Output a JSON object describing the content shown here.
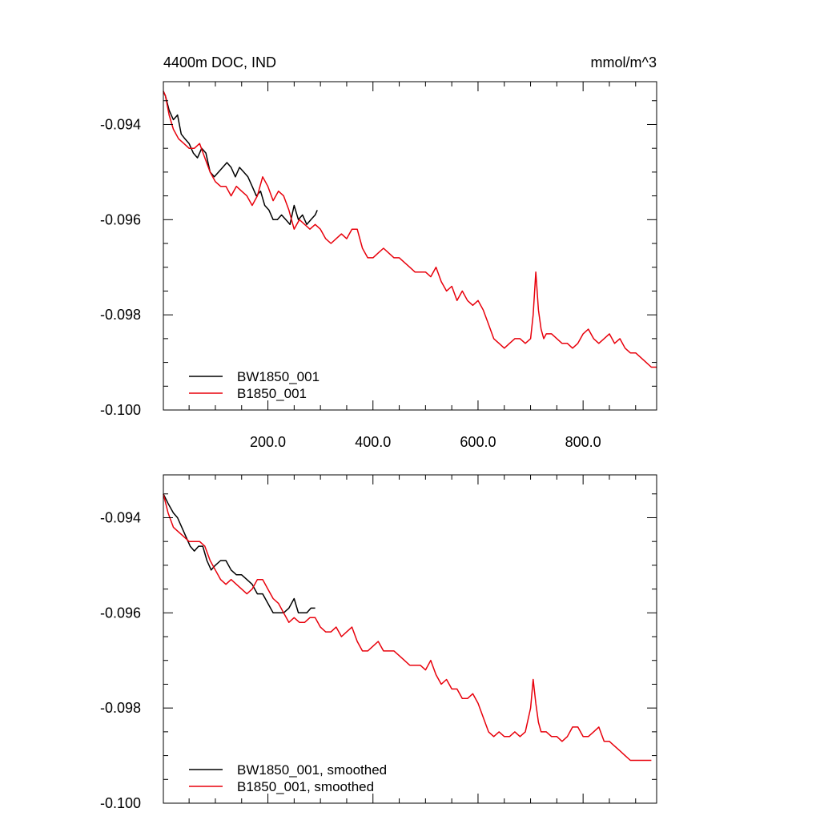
{
  "chart_data": [
    {
      "type": "line",
      "title": "4400m DOC, IND",
      "units": "mmol/m^3",
      "xlim": [
        1,
        940
      ],
      "ylim": [
        -0.1,
        -0.0931
      ],
      "x_ticks": [
        200,
        400,
        600,
        800
      ],
      "x_tick_labels": [
        "200.0",
        "400.0",
        "600.0",
        "800.0"
      ],
      "y_ticks": [
        -0.094,
        -0.096,
        -0.098,
        -0.1
      ],
      "y_tick_labels": [
        "-0.094",
        "-0.096",
        "-0.098",
        "-0.100"
      ],
      "legend_position": "bottom-left",
      "series": [
        {
          "name": "BW1850_001",
          "color": "#000000",
          "x": [
            1,
            5,
            12,
            20,
            28,
            35,
            42,
            50,
            58,
            66,
            74,
            82,
            90,
            98,
            106,
            114,
            122,
            130,
            138,
            146,
            154,
            162,
            170,
            178,
            186,
            194,
            202,
            210,
            218,
            226,
            234,
            242,
            250,
            258,
            266,
            274,
            282,
            290,
            294
          ],
          "y": [
            -0.0933,
            -0.0934,
            -0.0937,
            -0.0939,
            -0.0938,
            -0.0942,
            -0.0943,
            -0.0944,
            -0.0946,
            -0.0947,
            -0.0945,
            -0.0946,
            -0.095,
            -0.0951,
            -0.095,
            -0.0949,
            -0.0948,
            -0.0949,
            -0.0951,
            -0.0949,
            -0.095,
            -0.0951,
            -0.0953,
            -0.0955,
            -0.0954,
            -0.0957,
            -0.0958,
            -0.096,
            -0.096,
            -0.0959,
            -0.096,
            -0.0961,
            -0.0957,
            -0.096,
            -0.0959,
            -0.0961,
            -0.096,
            -0.0959,
            -0.0958
          ]
        },
        {
          "name": "B1850_001",
          "color": "#e8000b",
          "x": [
            1,
            5,
            12,
            20,
            30,
            40,
            50,
            60,
            70,
            80,
            90,
            100,
            110,
            120,
            130,
            140,
            150,
            160,
            170,
            180,
            190,
            200,
            210,
            220,
            230,
            240,
            250,
            260,
            270,
            280,
            290,
            300,
            310,
            320,
            330,
            340,
            350,
            360,
            370,
            380,
            390,
            400,
            410,
            420,
            430,
            440,
            450,
            460,
            470,
            480,
            490,
            500,
            510,
            520,
            530,
            540,
            550,
            560,
            570,
            580,
            590,
            600,
            610,
            620,
            630,
            640,
            650,
            660,
            670,
            680,
            690,
            700,
            705,
            710,
            715,
            720,
            725,
            730,
            740,
            750,
            760,
            770,
            780,
            790,
            800,
            810,
            820,
            830,
            840,
            850,
            860,
            870,
            880,
            890,
            900,
            910,
            920,
            930,
            940
          ],
          "y": [
            -0.0933,
            -0.0934,
            -0.0938,
            -0.0941,
            -0.0943,
            -0.0944,
            -0.0945,
            -0.0945,
            -0.0944,
            -0.0947,
            -0.095,
            -0.0952,
            -0.0953,
            -0.0953,
            -0.0955,
            -0.0953,
            -0.0954,
            -0.0955,
            -0.0957,
            -0.0955,
            -0.0951,
            -0.0953,
            -0.0956,
            -0.0954,
            -0.0955,
            -0.0958,
            -0.0962,
            -0.096,
            -0.0961,
            -0.0962,
            -0.0961,
            -0.0962,
            -0.0964,
            -0.0965,
            -0.0964,
            -0.0963,
            -0.0964,
            -0.0962,
            -0.0962,
            -0.0966,
            -0.0968,
            -0.0968,
            -0.0967,
            -0.0966,
            -0.0967,
            -0.0968,
            -0.0968,
            -0.0969,
            -0.097,
            -0.0971,
            -0.0971,
            -0.0971,
            -0.0972,
            -0.097,
            -0.0973,
            -0.0975,
            -0.0974,
            -0.0977,
            -0.0975,
            -0.0977,
            -0.0978,
            -0.0977,
            -0.0979,
            -0.0982,
            -0.0985,
            -0.0986,
            -0.0987,
            -0.0986,
            -0.0985,
            -0.0985,
            -0.0986,
            -0.0985,
            -0.098,
            -0.0971,
            -0.0979,
            -0.0983,
            -0.0985,
            -0.0984,
            -0.0984,
            -0.0985,
            -0.0986,
            -0.0986,
            -0.0987,
            -0.0986,
            -0.0984,
            -0.0983,
            -0.0985,
            -0.0986,
            -0.0985,
            -0.0984,
            -0.0986,
            -0.0985,
            -0.0987,
            -0.0988,
            -0.0988,
            -0.0989,
            -0.099,
            -0.0991,
            -0.0991
          ]
        }
      ]
    },
    {
      "type": "line",
      "xlim": [
        1,
        940
      ],
      "ylim": [
        -0.1,
        -0.0931
      ],
      "x_ticks": [
        200,
        400,
        600,
        800
      ],
      "y_ticks": [
        -0.094,
        -0.096,
        -0.098,
        -0.1
      ],
      "y_tick_labels": [
        "-0.094",
        "-0.096",
        "-0.098",
        "-0.100"
      ],
      "legend_position": "bottom-left",
      "series": [
        {
          "name": "BW1850_001, smoothed",
          "color": "#000000",
          "x": [
            1,
            10,
            20,
            28,
            36,
            44,
            52,
            60,
            68,
            76,
            84,
            92,
            100,
            110,
            120,
            130,
            140,
            150,
            160,
            170,
            180,
            190,
            200,
            210,
            220,
            230,
            240,
            250,
            258,
            266,
            274,
            282,
            290
          ],
          "y": [
            -0.0935,
            -0.0937,
            -0.0939,
            -0.094,
            -0.0942,
            -0.0944,
            -0.0946,
            -0.0947,
            -0.0946,
            -0.0946,
            -0.0949,
            -0.0951,
            -0.095,
            -0.0949,
            -0.0949,
            -0.0951,
            -0.0952,
            -0.0952,
            -0.0953,
            -0.0954,
            -0.0956,
            -0.0956,
            -0.0958,
            -0.096,
            -0.096,
            -0.096,
            -0.0959,
            -0.0957,
            -0.096,
            -0.096,
            -0.096,
            -0.0959,
            -0.0959
          ]
        },
        {
          "name": "B1850_001, smoothed",
          "color": "#e8000b",
          "x": [
            1,
            10,
            20,
            30,
            40,
            50,
            60,
            70,
            80,
            90,
            100,
            110,
            120,
            130,
            140,
            150,
            160,
            170,
            180,
            190,
            200,
            210,
            220,
            230,
            240,
            250,
            260,
            270,
            280,
            290,
            300,
            310,
            320,
            330,
            340,
            350,
            360,
            370,
            380,
            390,
            400,
            410,
            420,
            430,
            440,
            450,
            460,
            470,
            480,
            490,
            500,
            510,
            520,
            530,
            540,
            550,
            560,
            570,
            580,
            590,
            600,
            610,
            620,
            630,
            640,
            650,
            660,
            670,
            680,
            690,
            700,
            705,
            710,
            715,
            720,
            730,
            740,
            750,
            760,
            770,
            780,
            790,
            800,
            810,
            820,
            830,
            840,
            850,
            860,
            870,
            880,
            890,
            900,
            910,
            920,
            930
          ],
          "y": [
            -0.0935,
            -0.0939,
            -0.0942,
            -0.0943,
            -0.0944,
            -0.0945,
            -0.0945,
            -0.0945,
            -0.0946,
            -0.0949,
            -0.0951,
            -0.0953,
            -0.0954,
            -0.0953,
            -0.0954,
            -0.0955,
            -0.0956,
            -0.0955,
            -0.0953,
            -0.0953,
            -0.0955,
            -0.0957,
            -0.0958,
            -0.096,
            -0.0962,
            -0.0961,
            -0.0962,
            -0.0962,
            -0.0961,
            -0.0961,
            -0.0963,
            -0.0964,
            -0.0964,
            -0.0963,
            -0.0965,
            -0.0964,
            -0.0963,
            -0.0966,
            -0.0968,
            -0.0968,
            -0.0967,
            -0.0966,
            -0.0968,
            -0.0968,
            -0.0968,
            -0.0969,
            -0.097,
            -0.0971,
            -0.0971,
            -0.0971,
            -0.0972,
            -0.097,
            -0.0973,
            -0.0975,
            -0.0974,
            -0.0976,
            -0.0976,
            -0.0978,
            -0.0978,
            -0.0977,
            -0.0979,
            -0.0982,
            -0.0985,
            -0.0986,
            -0.0985,
            -0.0986,
            -0.0986,
            -0.0985,
            -0.0986,
            -0.0985,
            -0.098,
            -0.0974,
            -0.0979,
            -0.0983,
            -0.0985,
            -0.0985,
            -0.0986,
            -0.0986,
            -0.0987,
            -0.0986,
            -0.0984,
            -0.0984,
            -0.0986,
            -0.0986,
            -0.0985,
            -0.0984,
            -0.0987,
            -0.0987,
            -0.0988,
            -0.0989,
            -0.099,
            -0.0991,
            -0.0991,
            -0.0991,
            -0.0991,
            -0.0991
          ]
        }
      ]
    }
  ]
}
